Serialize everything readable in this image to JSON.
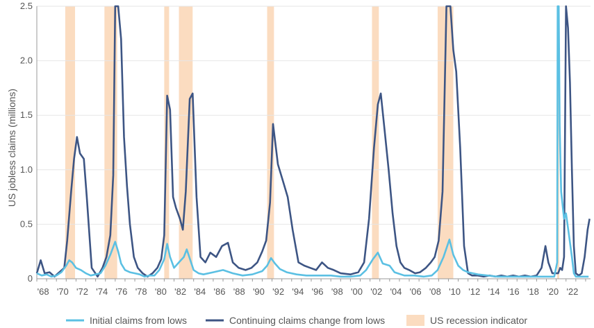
{
  "chart_data": {
    "type": "line",
    "ylabel": "US jobless claims (millions)",
    "ylim": [
      0,
      2.5
    ],
    "yticks": [
      0,
      0.5,
      1.0,
      1.5,
      2.0,
      2.5
    ],
    "ytick_labels": [
      "0",
      "0.5",
      "1.0",
      "1.5",
      "2.0",
      "2.5"
    ],
    "xlim": [
      1967.0,
      2023.5
    ],
    "xticks": [
      1968,
      1970,
      1972,
      1974,
      1976,
      1978,
      1980,
      1982,
      1984,
      1986,
      1988,
      1990,
      1992,
      1994,
      1996,
      1998,
      2000,
      2002,
      2004,
      2006,
      2008,
      2010,
      2012,
      2014,
      2016,
      2018,
      2020,
      2022
    ],
    "xtick_labels": [
      "'68",
      "'70",
      "'72",
      "'74",
      "'76",
      "'78",
      "'80",
      "'82",
      "'84",
      "'86",
      "'88",
      "'90",
      "'92",
      "'94",
      "'96",
      "'98",
      "'00",
      "'02",
      "'04",
      "'06",
      "'08",
      "'10",
      "'12",
      "'14",
      "'16",
      "'18",
      "'20",
      "'22"
    ],
    "recessions": [
      [
        1969.9,
        1970.9
      ],
      [
        1973.9,
        1975.2
      ],
      [
        1980.0,
        1980.5
      ],
      [
        1981.5,
        1982.9
      ],
      [
        1990.5,
        1991.2
      ],
      [
        2001.2,
        2001.9
      ],
      [
        2007.9,
        2009.5
      ],
      [
        2020.1,
        2020.3
      ]
    ],
    "series": [
      {
        "name": "Initial claims from lows",
        "color": "#5bc0e3",
        "x": [
          1967.0,
          1967.5,
          1968.0,
          1968.5,
          1969.0,
          1969.5,
          1970.0,
          1970.3,
          1970.6,
          1971.0,
          1971.5,
          1972.0,
          1972.5,
          1973.0,
          1973.5,
          1974.0,
          1974.5,
          1975.0,
          1975.3,
          1975.6,
          1976.0,
          1976.5,
          1977.0,
          1977.5,
          1978.0,
          1978.5,
          1979.0,
          1979.5,
          1980.0,
          1980.3,
          1980.6,
          1981.0,
          1981.5,
          1982.0,
          1982.3,
          1982.7,
          1983.0,
          1983.5,
          1984.0,
          1985.0,
          1986.0,
          1987.0,
          1988.0,
          1989.0,
          1990.0,
          1990.5,
          1990.9,
          1991.3,
          1991.8,
          1992.5,
          1993.5,
          1994.5,
          1996.0,
          1997.0,
          1998.0,
          1999.0,
          2000.0,
          2000.6,
          2001.3,
          2001.8,
          2002.3,
          2003.0,
          2003.5,
          2004.5,
          2005.5,
          2006.5,
          2007.3,
          2007.9,
          2008.5,
          2009.1,
          2009.5,
          2010.0,
          2010.5,
          2011.0,
          2012.0,
          2013.0,
          2014.0,
          2015.0,
          2016.0,
          2017.0,
          2018.0,
          2019.0,
          2019.8,
          2020.1,
          2020.15,
          2020.25,
          2020.35,
          2020.5,
          2020.8,
          2021.0,
          2021.3,
          2021.6,
          2021.8,
          2022.0,
          2022.5,
          2023.0,
          2023.3
        ],
        "values": [
          0.05,
          0.03,
          0.04,
          0.02,
          0.03,
          0.06,
          0.12,
          0.17,
          0.15,
          0.1,
          0.08,
          0.05,
          0.03,
          0.04,
          0.05,
          0.12,
          0.22,
          0.34,
          0.25,
          0.14,
          0.08,
          0.06,
          0.05,
          0.04,
          0.02,
          0.03,
          0.03,
          0.08,
          0.18,
          0.32,
          0.2,
          0.1,
          0.15,
          0.2,
          0.27,
          0.16,
          0.08,
          0.05,
          0.04,
          0.06,
          0.08,
          0.05,
          0.03,
          0.04,
          0.07,
          0.12,
          0.19,
          0.14,
          0.09,
          0.06,
          0.04,
          0.03,
          0.03,
          0.03,
          0.02,
          0.02,
          0.03,
          0.08,
          0.18,
          0.24,
          0.14,
          0.12,
          0.06,
          0.03,
          0.03,
          0.02,
          0.03,
          0.08,
          0.2,
          0.36,
          0.22,
          0.12,
          0.08,
          0.06,
          0.04,
          0.03,
          0.02,
          0.02,
          0.02,
          0.02,
          0.02,
          0.02,
          0.02,
          0.15,
          2.5,
          2.5,
          1.4,
          0.8,
          0.55,
          0.6,
          0.4,
          0.2,
          0.05,
          0.02,
          0.02,
          0.02,
          0.02
        ]
      },
      {
        "name": "Continuing claims change from lows",
        "color": "#3d5584",
        "x": [
          1967.0,
          1967.4,
          1967.8,
          1968.3,
          1968.8,
          1969.3,
          1969.8,
          1970.1,
          1970.5,
          1970.8,
          1971.1,
          1971.4,
          1971.8,
          1972.1,
          1972.6,
          1973.2,
          1973.7,
          1974.1,
          1974.5,
          1974.8,
          1975.0,
          1975.3,
          1975.6,
          1975.9,
          1976.2,
          1976.5,
          1976.9,
          1977.3,
          1977.8,
          1978.3,
          1978.8,
          1979.3,
          1979.7,
          1980.0,
          1980.3,
          1980.6,
          1980.9,
          1981.2,
          1981.6,
          1981.9,
          1982.2,
          1982.6,
          1982.9,
          1983.3,
          1983.7,
          1984.2,
          1984.7,
          1985.3,
          1985.9,
          1986.5,
          1987.0,
          1987.6,
          1988.3,
          1988.9,
          1989.5,
          1990.0,
          1990.4,
          1990.8,
          1991.1,
          1991.6,
          1992.1,
          1992.6,
          1993.1,
          1993.7,
          1994.3,
          1994.9,
          1995.5,
          1996.1,
          1996.7,
          1997.3,
          1998.0,
          1999.0,
          1999.8,
          2000.4,
          2000.9,
          2001.4,
          2001.8,
          2002.1,
          2002.5,
          2002.9,
          2003.3,
          2003.7,
          2004.1,
          2004.5,
          2005.0,
          2005.6,
          2006.1,
          2006.7,
          2007.2,
          2007.6,
          2008.0,
          2008.4,
          2008.8,
          2009.2,
          2009.5,
          2009.8,
          2010.2,
          2010.6,
          2011.0,
          2011.4,
          2012.0,
          2012.6,
          2013.2,
          2013.8,
          2014.4,
          2015.0,
          2015.6,
          2016.2,
          2016.8,
          2017.4,
          2018.0,
          2018.5,
          2018.9,
          2019.2,
          2019.6,
          2020.0,
          2020.2,
          2020.4,
          2020.6,
          2020.8,
          2021.0,
          2021.2,
          2021.4,
          2021.6,
          2021.8,
          2022.0,
          2022.3,
          2022.6,
          2022.9,
          2023.2,
          2023.4
        ],
        "values": [
          0.05,
          0.17,
          0.05,
          0.06,
          0.02,
          0.06,
          0.1,
          0.35,
          0.8,
          1.1,
          1.3,
          1.15,
          1.1,
          0.75,
          0.1,
          0.02,
          0.1,
          0.2,
          0.4,
          0.95,
          2.5,
          2.5,
          2.2,
          1.3,
          0.85,
          0.5,
          0.2,
          0.1,
          0.05,
          0.02,
          0.05,
          0.1,
          0.18,
          0.4,
          1.68,
          1.55,
          0.75,
          0.65,
          0.55,
          0.45,
          0.8,
          1.65,
          1.7,
          0.75,
          0.2,
          0.15,
          0.24,
          0.2,
          0.3,
          0.33,
          0.15,
          0.1,
          0.08,
          0.1,
          0.15,
          0.25,
          0.35,
          0.7,
          1.42,
          1.05,
          0.9,
          0.75,
          0.45,
          0.15,
          0.12,
          0.1,
          0.08,
          0.15,
          0.1,
          0.08,
          0.05,
          0.04,
          0.06,
          0.15,
          0.55,
          1.2,
          1.6,
          1.7,
          1.35,
          1.0,
          0.6,
          0.3,
          0.15,
          0.1,
          0.08,
          0.05,
          0.06,
          0.1,
          0.15,
          0.2,
          0.35,
          0.8,
          2.5,
          2.5,
          2.1,
          1.9,
          1.2,
          0.3,
          0.05,
          0.03,
          0.03,
          0.02,
          0.03,
          0.02,
          0.03,
          0.02,
          0.03,
          0.02,
          0.03,
          0.02,
          0.03,
          0.1,
          0.3,
          0.15,
          0.05,
          0.05,
          0.05,
          0.1,
          0.08,
          0.2,
          2.5,
          2.3,
          1.8,
          1.0,
          0.3,
          0.05,
          0.03,
          0.05,
          0.2,
          0.45,
          0.55
        ]
      }
    ],
    "legend": {
      "placement": "bottom",
      "items": [
        {
          "label": "Initial claims from lows",
          "type": "line",
          "color": "#5bc0e3"
        },
        {
          "label": "Continuing claims change from lows",
          "type": "line",
          "color": "#3d5584"
        },
        {
          "label": "US recession indicator",
          "type": "box",
          "color": "#fbdcc0"
        }
      ]
    }
  }
}
